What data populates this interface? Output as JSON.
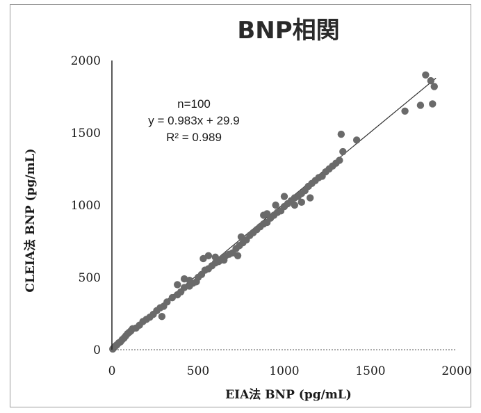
{
  "chart_data": {
    "type": "scatter",
    "title": "BNP相関",
    "xlabel": "EIA法 BNP (pg/mL)",
    "ylabel": "CLEIA法 BNP (pg/mL)",
    "xlim": [
      0,
      2000
    ],
    "ylim": [
      0,
      2000
    ],
    "x_ticks": [
      "0",
      "500",
      "1000",
      "1500",
      "2000"
    ],
    "y_ticks": [
      "0",
      "500",
      "1000",
      "1500",
      "2000"
    ],
    "grid": false,
    "annotations": [
      "n=100",
      "y = 0.983x + 29.9",
      "R² = 0.989"
    ],
    "regression": {
      "slope": 0.983,
      "intercept": 29.9
    },
    "marker_color": "#6a6a6a",
    "series": [
      {
        "points": [
          [
            5,
            5
          ],
          [
            10,
            12
          ],
          [
            15,
            18
          ],
          [
            20,
            25
          ],
          [
            25,
            30
          ],
          [
            30,
            35
          ],
          [
            40,
            48
          ],
          [
            50,
            55
          ],
          [
            60,
            70
          ],
          [
            70,
            80
          ],
          [
            80,
            95
          ],
          [
            90,
            110
          ],
          [
            100,
            120
          ],
          [
            110,
            130
          ],
          [
            120,
            145
          ],
          [
            140,
            150
          ],
          [
            160,
            170
          ],
          [
            180,
            195
          ],
          [
            200,
            210
          ],
          [
            220,
            225
          ],
          [
            240,
            245
          ],
          [
            260,
            270
          ],
          [
            280,
            290
          ],
          [
            300,
            300
          ],
          [
            320,
            330
          ],
          [
            290,
            230
          ],
          [
            350,
            360
          ],
          [
            380,
            380
          ],
          [
            400,
            400
          ],
          [
            420,
            430
          ],
          [
            450,
            440
          ],
          [
            470,
            460
          ],
          [
            490,
            470
          ],
          [
            500,
            500
          ],
          [
            520,
            520
          ],
          [
            540,
            550
          ],
          [
            560,
            560
          ],
          [
            580,
            580
          ],
          [
            600,
            600
          ],
          [
            620,
            610
          ],
          [
            640,
            630
          ],
          [
            660,
            650
          ],
          [
            680,
            660
          ],
          [
            700,
            670
          ],
          [
            720,
            700
          ],
          [
            740,
            720
          ],
          [
            760,
            740
          ],
          [
            780,
            760
          ],
          [
            800,
            790
          ],
          [
            820,
            810
          ],
          [
            840,
            830
          ],
          [
            860,
            850
          ],
          [
            880,
            870
          ],
          [
            900,
            880
          ],
          [
            920,
            910
          ],
          [
            940,
            930
          ],
          [
            960,
            950
          ],
          [
            980,
            960
          ],
          [
            1000,
            990
          ],
          [
            1020,
            1010
          ],
          [
            1040,
            1030
          ],
          [
            1060,
            1050
          ],
          [
            1080,
            1060
          ],
          [
            1100,
            1080
          ],
          [
            1120,
            1100
          ],
          [
            1140,
            1130
          ],
          [
            1160,
            1150
          ],
          [
            1180,
            1170
          ],
          [
            1200,
            1190
          ],
          [
            1220,
            1200
          ],
          [
            1060,
            1000
          ],
          [
            1100,
            1020
          ],
          [
            1150,
            1050
          ],
          [
            1240,
            1230
          ],
          [
            1260,
            1250
          ],
          [
            1280,
            1270
          ],
          [
            1300,
            1290
          ],
          [
            1320,
            1310
          ],
          [
            1340,
            1370
          ],
          [
            1420,
            1450
          ],
          [
            1330,
            1490
          ],
          [
            1700,
            1650
          ],
          [
            1790,
            1690
          ],
          [
            1860,
            1700
          ],
          [
            1820,
            1900
          ],
          [
            1850,
            1860
          ],
          [
            1870,
            1820
          ],
          [
            530,
            630
          ],
          [
            560,
            650
          ],
          [
            600,
            640
          ],
          [
            650,
            620
          ],
          [
            750,
            780
          ],
          [
            730,
            650
          ],
          [
            450,
            480
          ],
          [
            420,
            490
          ],
          [
            380,
            450
          ],
          [
            900,
            940
          ],
          [
            950,
            1000
          ],
          [
            1000,
            1060
          ],
          [
            880,
            930
          ]
        ]
      }
    ]
  }
}
